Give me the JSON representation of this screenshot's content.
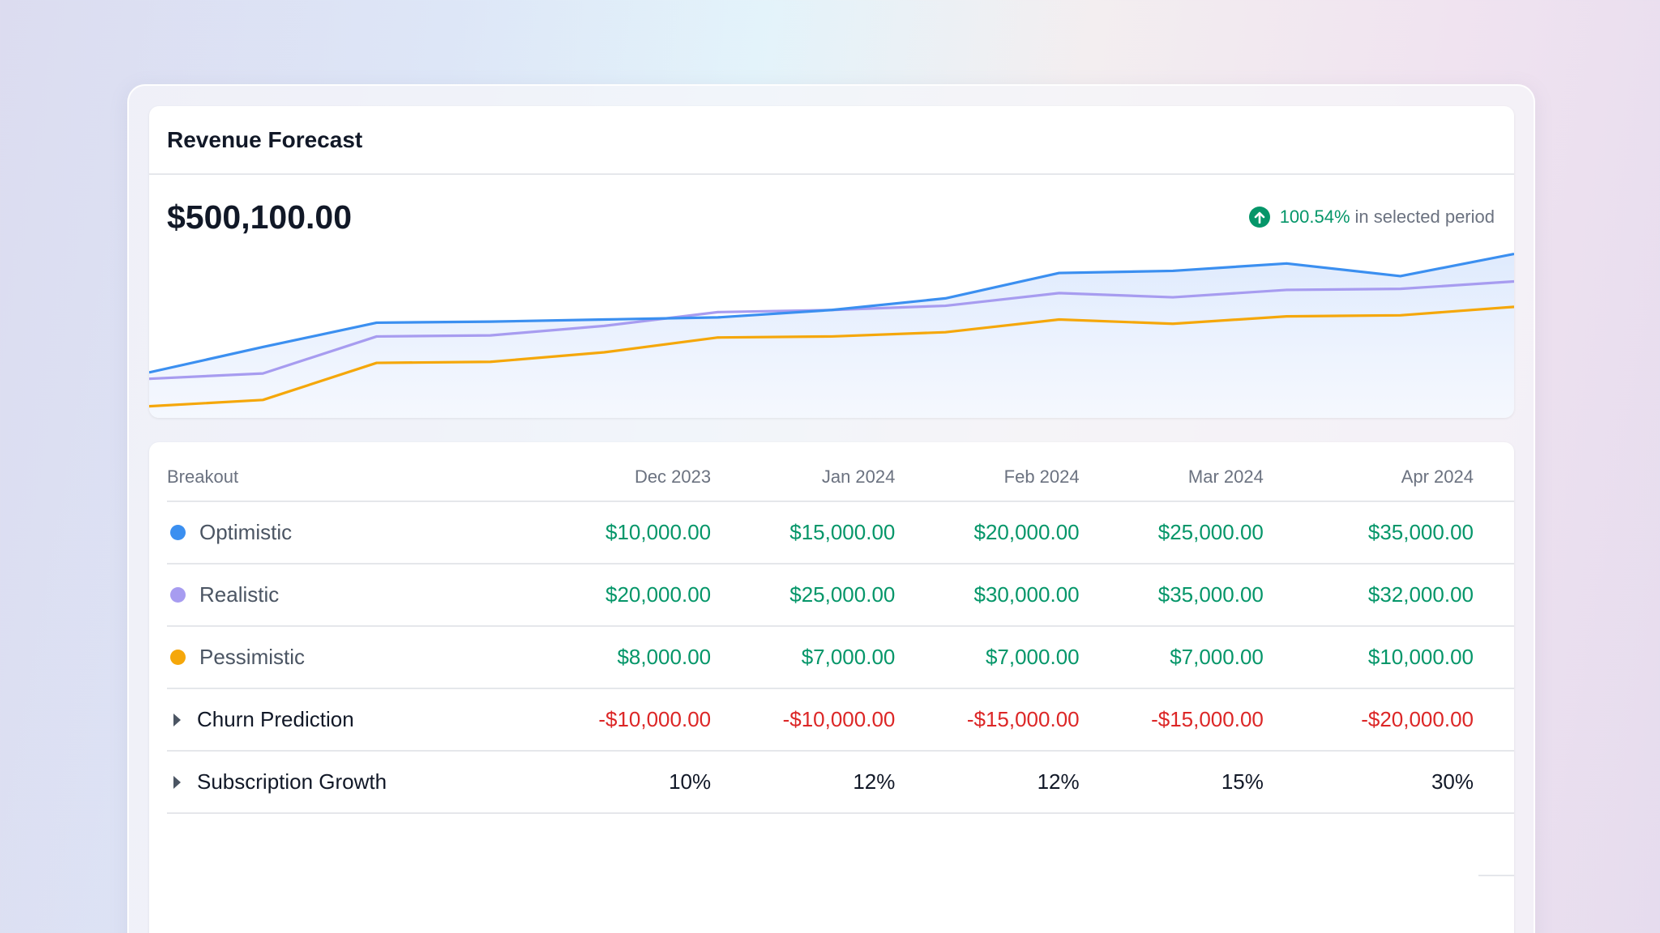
{
  "card": {
    "title": "Revenue Forecast",
    "total": "$500,100.00",
    "change_pct": "100.54%",
    "change_text": "in selected period",
    "change_icon": "arrow-up-circle-icon"
  },
  "colors": {
    "optimistic": "#3b8ff0",
    "realistic": "#a79cf0",
    "pessimistic": "#f5a70a",
    "positive": "#059669",
    "negative": "#dc2626"
  },
  "chart_data": {
    "type": "line",
    "ylim": [
      0,
      160
    ],
    "series": [
      {
        "key": "optimistic",
        "values": [
          43,
          67,
          90,
          91,
          93,
          95,
          102,
          113,
          137,
          139,
          146,
          134,
          155
        ]
      },
      {
        "key": "realistic",
        "values": [
          37,
          42,
          77,
          78,
          87,
          100,
          102,
          106,
          118,
          114,
          121,
          122,
          129
        ]
      },
      {
        "key": "pessimistic",
        "values": [
          11,
          17,
          52,
          53,
          62,
          76,
          77,
          81,
          93,
          89,
          96,
          97,
          105
        ]
      }
    ]
  },
  "table": {
    "headers": [
      "Breakout",
      "Dec 2023",
      "Jan 2024",
      "Feb 2024",
      "Mar 2024",
      "Apr 2024"
    ],
    "rows": [
      {
        "label": "Optimistic",
        "kind": "dot",
        "color": "#3b8ff0",
        "tone": "pos",
        "values": [
          "$10,000.00",
          "$15,000.00",
          "$20,000.00",
          "$25,000.00",
          "$35,000.00"
        ]
      },
      {
        "label": "Realistic",
        "kind": "dot",
        "color": "#a79cf0",
        "tone": "pos",
        "values": [
          "$20,000.00",
          "$25,000.00",
          "$30,000.00",
          "$35,000.00",
          "$32,000.00"
        ]
      },
      {
        "label": "Pessimistic",
        "kind": "dot",
        "color": "#f5a70a",
        "tone": "pos",
        "values": [
          "$8,000.00",
          "$7,000.00",
          "$7,000.00",
          "$7,000.00",
          "$10,000.00"
        ]
      },
      {
        "label": "Churn Prediction",
        "kind": "expand",
        "tone": "neg",
        "values": [
          "-$10,000.00",
          "-$10,000.00",
          "-$15,000.00",
          "-$15,000.00",
          "-$20,000.00"
        ]
      },
      {
        "label": "Subscription Growth",
        "kind": "expand",
        "tone": "dark",
        "values": [
          "10%",
          "12%",
          "12%",
          "15%",
          "30%"
        ]
      }
    ]
  }
}
